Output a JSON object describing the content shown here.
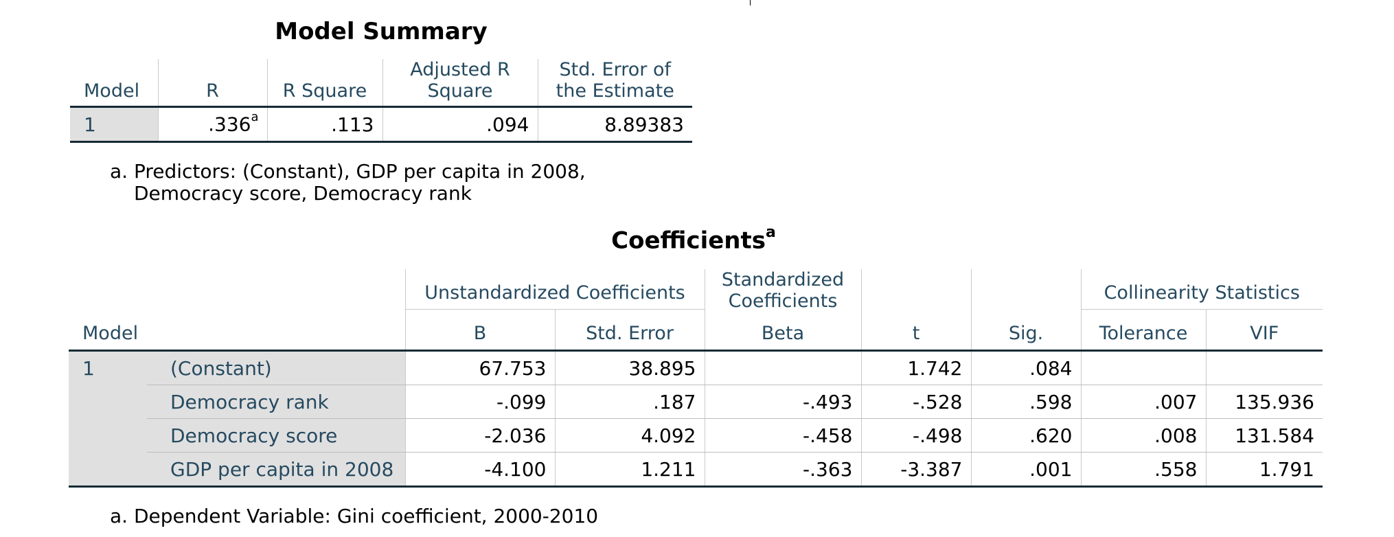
{
  "model_summary": {
    "title": "Model Summary",
    "headers": [
      "Model",
      "R",
      "R Square",
      "Adjusted R Square",
      "Std. Error of the Estimate"
    ],
    "row": {
      "model": "1",
      "r": ".336",
      "r_footnote": "a",
      "r_square": ".113",
      "adj_r_square": ".094",
      "std_error": "8.89383"
    },
    "footnote_line1": "a. Predictors: (Constant), GDP per capita in 2008,",
    "footnote_line2": "Democracy score, Democracy rank"
  },
  "coefficients": {
    "title": "Coefficients",
    "title_sup": "a",
    "group_headers": {
      "unstandardized": "Unstandardized Coefficients",
      "standardized": "Standardized Coefficients",
      "collinearity": "Collinearity Statistics"
    },
    "headers": {
      "model": "Model",
      "b": "B",
      "std_error": "Std. Error",
      "beta": "Beta",
      "t": "t",
      "sig": "Sig.",
      "tolerance": "Tolerance",
      "vif": "VIF"
    },
    "model": "1",
    "rows": [
      {
        "label": "(Constant)",
        "b": "67.753",
        "std_error": "38.895",
        "beta": "",
        "t": "1.742",
        "sig": ".084",
        "tolerance": "",
        "vif": ""
      },
      {
        "label": "Democracy rank",
        "b": "-.099",
        "std_error": ".187",
        "beta": "-.493",
        "t": "-.528",
        "sig": ".598",
        "tolerance": ".007",
        "vif": "135.936"
      },
      {
        "label": "Democracy score",
        "b": "-2.036",
        "std_error": "4.092",
        "beta": "-.458",
        "t": "-.498",
        "sig": ".620",
        "tolerance": ".008",
        "vif": "131.584"
      },
      {
        "label": "GDP per capita in 2008",
        "b": "-4.100",
        "std_error": "1.211",
        "beta": "-.363",
        "t": "-3.387",
        "sig": ".001",
        "tolerance": ".558",
        "vif": "1.791"
      }
    ],
    "footnote": "a. Dependent Variable: Gini coefficient, 2000-2010"
  }
}
